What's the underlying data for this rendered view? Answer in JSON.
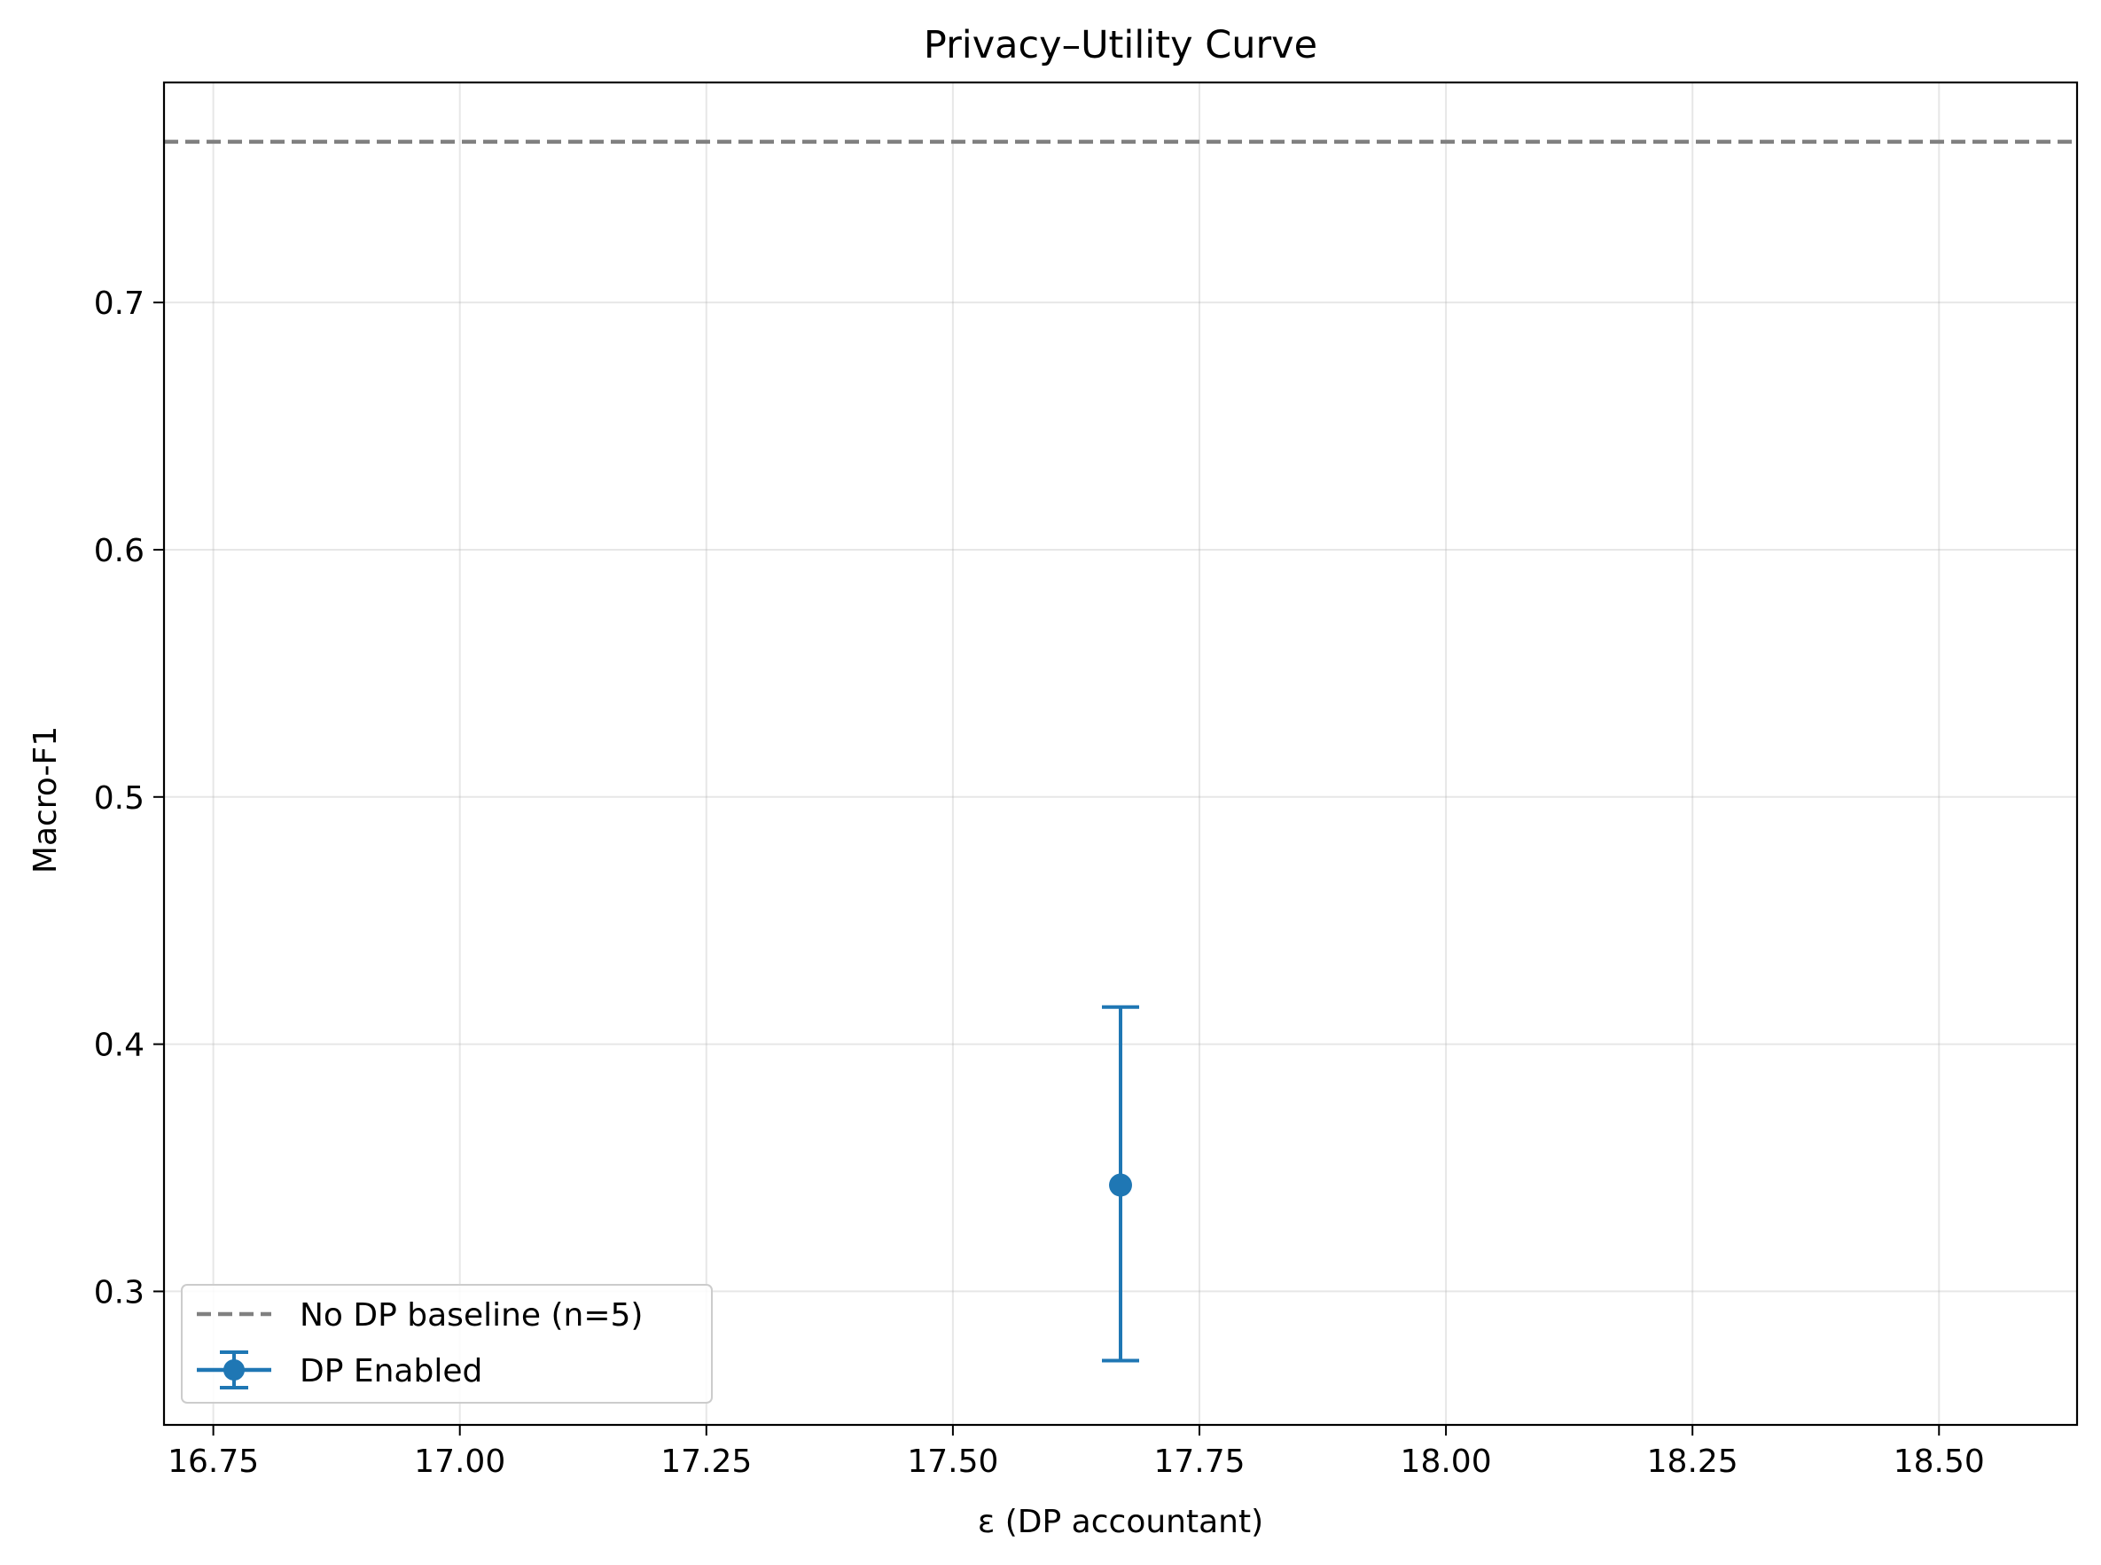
{
  "chart_data": {
    "type": "scatter",
    "title": "Privacy–Utility Curve",
    "xlabel": "ε (DP accountant)",
    "ylabel": "Macro-F1",
    "xlim": [
      16.7,
      18.64
    ],
    "ylim": [
      0.246,
      0.789
    ],
    "xticks": [
      16.75,
      17.0,
      17.25,
      17.5,
      17.75,
      18.0,
      18.25,
      18.5
    ],
    "xtick_labels": [
      "16.75",
      "17.00",
      "17.25",
      "17.50",
      "17.75",
      "18.00",
      "18.25",
      "18.50"
    ],
    "yticks": [
      0.3,
      0.4,
      0.5,
      0.6,
      0.7
    ],
    "ytick_labels": [
      "0.3",
      "0.4",
      "0.5",
      "0.6",
      "0.7"
    ],
    "grid": true,
    "legend_position": "lower-left",
    "series": [
      {
        "name": "DP Enabled",
        "kind": "errorbar",
        "color": "#1f77b4",
        "points": [
          {
            "x": 17.67,
            "y": 0.343,
            "yerr_low": 0.272,
            "yerr_high": 0.415
          }
        ]
      }
    ],
    "reference_lines": [
      {
        "name": "No DP baseline (n=5)",
        "orientation": "horizontal",
        "y": 0.765,
        "style": "dashed",
        "color": "#808080"
      }
    ]
  }
}
